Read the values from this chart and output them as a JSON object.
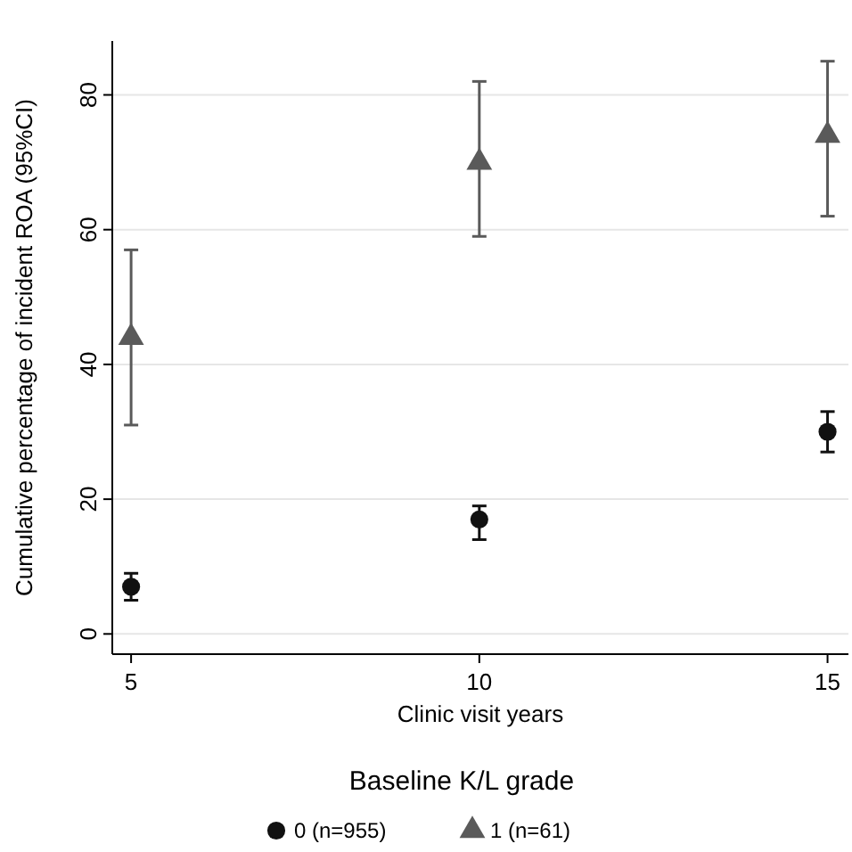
{
  "chart_data": {
    "type": "scatter",
    "xlabel": "Clinic visit years",
    "ylabel": "Cumulative percentage of incident ROA (95%CI)",
    "legend_title": "Baseline K/L grade",
    "x": [
      5,
      10,
      15
    ],
    "xlim": [
      4.73,
      15.3
    ],
    "xticks": [
      5,
      10,
      15
    ],
    "ylim": [
      -3,
      88
    ],
    "yticks": [
      0,
      20,
      40,
      60,
      80
    ],
    "grid": "y",
    "legend": "bottom",
    "series": [
      {
        "name": "0 (n=955)",
        "color": "#111111",
        "marker": "circle",
        "values": [
          7,
          17,
          30
        ],
        "errors": [
          [
            5,
            9
          ],
          [
            14,
            19
          ],
          [
            27,
            33
          ]
        ]
      },
      {
        "name": "1 (n=61)",
        "color": "#5a5a5a",
        "marker": "triangle",
        "values": [
          44,
          70,
          74
        ],
        "errors": [
          [
            31,
            57
          ],
          [
            59,
            82
          ],
          [
            62,
            85
          ]
        ]
      }
    ]
  }
}
